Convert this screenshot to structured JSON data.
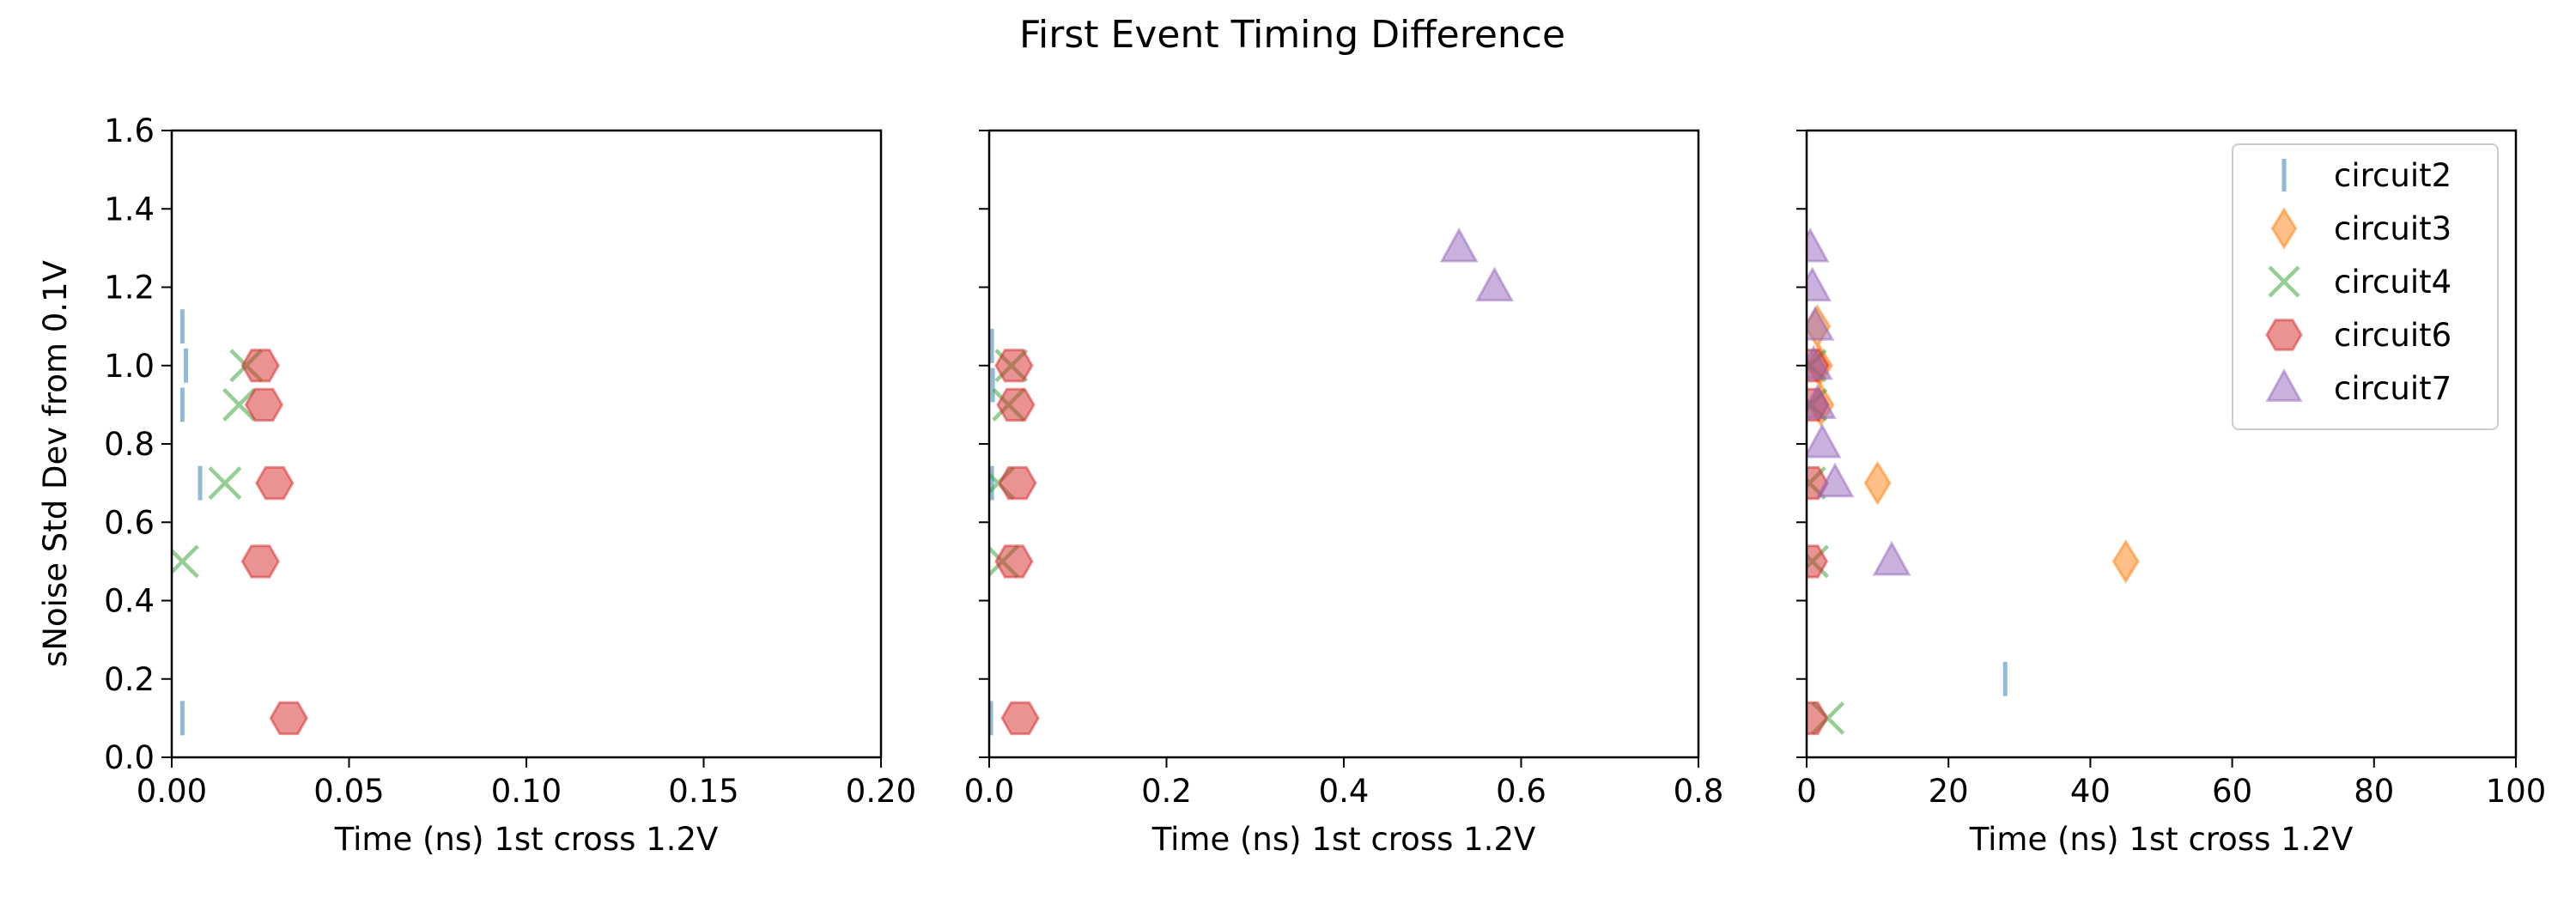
{
  "chart_data": {
    "type": "scatter",
    "title": "First Event Timing Difference",
    "ylabel": "sNoise Std Dev from 0.1V",
    "ylim": [
      0,
      1.6
    ],
    "yticks": [
      "0.0",
      "0.2",
      "0.4",
      "0.6",
      "0.8",
      "1.0",
      "1.2",
      "1.4",
      "1.6"
    ],
    "legend": {
      "placement": "top-right",
      "panel": 3,
      "entries": [
        "circuit2",
        "circuit3",
        "circuit4",
        "circuit6",
        "circuit7"
      ]
    },
    "series_styles": [
      {
        "name": "circuit2",
        "color": "#1f77b4",
        "marker": "vline"
      },
      {
        "name": "circuit3",
        "color": "#ff7f0e",
        "marker": "diamond"
      },
      {
        "name": "circuit4",
        "color": "#2ca02c",
        "marker": "x"
      },
      {
        "name": "circuit6",
        "color": "#d62728",
        "marker": "hexagon"
      },
      {
        "name": "circuit7",
        "color": "#9467bd",
        "marker": "triangle"
      }
    ],
    "panels": [
      {
        "xlabel": "Time (ns) 1st cross 1.2V",
        "xlim": [
          0,
          0.2
        ],
        "xticks": [
          "0.00",
          "0.05",
          "0.10",
          "0.15",
          "0.20"
        ],
        "show_yticklabels": true,
        "series": [
          {
            "name": "circuit2",
            "points": [
              [
                0.003,
                1.1
              ],
              [
                0.004,
                1.0
              ],
              [
                0.003,
                0.9
              ],
              [
                0.008,
                0.7
              ],
              [
                0.003,
                0.1
              ]
            ]
          },
          {
            "name": "circuit3",
            "points": []
          },
          {
            "name": "circuit4",
            "points": [
              [
                0.021,
                1.0
              ],
              [
                0.019,
                0.9
              ],
              [
                0.015,
                0.7
              ],
              [
                0.003,
                0.5
              ]
            ]
          },
          {
            "name": "circuit6",
            "points": [
              [
                0.025,
                1.0
              ],
              [
                0.026,
                0.9
              ],
              [
                0.029,
                0.7
              ],
              [
                0.025,
                0.5
              ],
              [
                0.033,
                0.1
              ]
            ]
          },
          {
            "name": "circuit7",
            "points": []
          }
        ]
      },
      {
        "xlabel": "Time (ns) 1st cross 1.2V",
        "xlim": [
          0,
          0.8
        ],
        "xticks": [
          "0.0",
          "0.2",
          "0.4",
          "0.6",
          "0.8"
        ],
        "show_yticklabels": false,
        "series": [
          {
            "name": "circuit2",
            "points": [
              [
                0.003,
                1.05
              ],
              [
                0.004,
                0.95
              ],
              [
                0.003,
                0.7
              ],
              [
                0.002,
                0.1
              ]
            ]
          },
          {
            "name": "circuit3",
            "points": []
          },
          {
            "name": "circuit4",
            "points": [
              [
                0.025,
                1.0
              ],
              [
                0.022,
                0.9
              ],
              [
                0.01,
                0.7
              ],
              [
                0.015,
                0.5
              ]
            ]
          },
          {
            "name": "circuit6",
            "points": [
              [
                0.028,
                1.0
              ],
              [
                0.03,
                0.9
              ],
              [
                0.032,
                0.7
              ],
              [
                0.028,
                0.5
              ],
              [
                0.035,
                0.1
              ]
            ]
          },
          {
            "name": "circuit7",
            "points": [
              [
                0.53,
                1.3
              ],
              [
                0.57,
                1.2
              ]
            ]
          }
        ]
      },
      {
        "xlabel": "Time (ns) 1st cross 1.2V",
        "xlim": [
          0,
          100
        ],
        "xticks": [
          "0",
          "20",
          "40",
          "60",
          "80",
          "100"
        ],
        "show_yticklabels": false,
        "series": [
          {
            "name": "circuit2",
            "points": [
              [
                28,
                0.2
              ]
            ]
          },
          {
            "name": "circuit3",
            "points": [
              [
                1.5,
                1.1
              ],
              [
                1.8,
                1.0
              ],
              [
                2.0,
                0.9
              ],
              [
                10,
                0.7
              ],
              [
                45,
                0.5
              ]
            ]
          },
          {
            "name": "circuit4",
            "points": [
              [
                0.5,
                1.0
              ],
              [
                0.6,
                0.9
              ],
              [
                0.4,
                0.7
              ],
              [
                0.8,
                0.5
              ],
              [
                3,
                0.1
              ]
            ]
          },
          {
            "name": "circuit6",
            "points": [
              [
                0.5,
                1.0
              ],
              [
                0.5,
                0.9
              ],
              [
                0.4,
                0.7
              ],
              [
                0.3,
                0.5
              ],
              [
                0.3,
                0.1
              ]
            ]
          },
          {
            "name": "circuit7",
            "points": [
              [
                0.5,
                1.3
              ],
              [
                0.8,
                1.2
              ],
              [
                1.2,
                1.1
              ],
              [
                1.0,
                1.0
              ],
              [
                1.5,
                0.9
              ],
              [
                2.2,
                0.8
              ],
              [
                4.0,
                0.7
              ],
              [
                12,
                0.5
              ]
            ]
          }
        ]
      }
    ]
  }
}
